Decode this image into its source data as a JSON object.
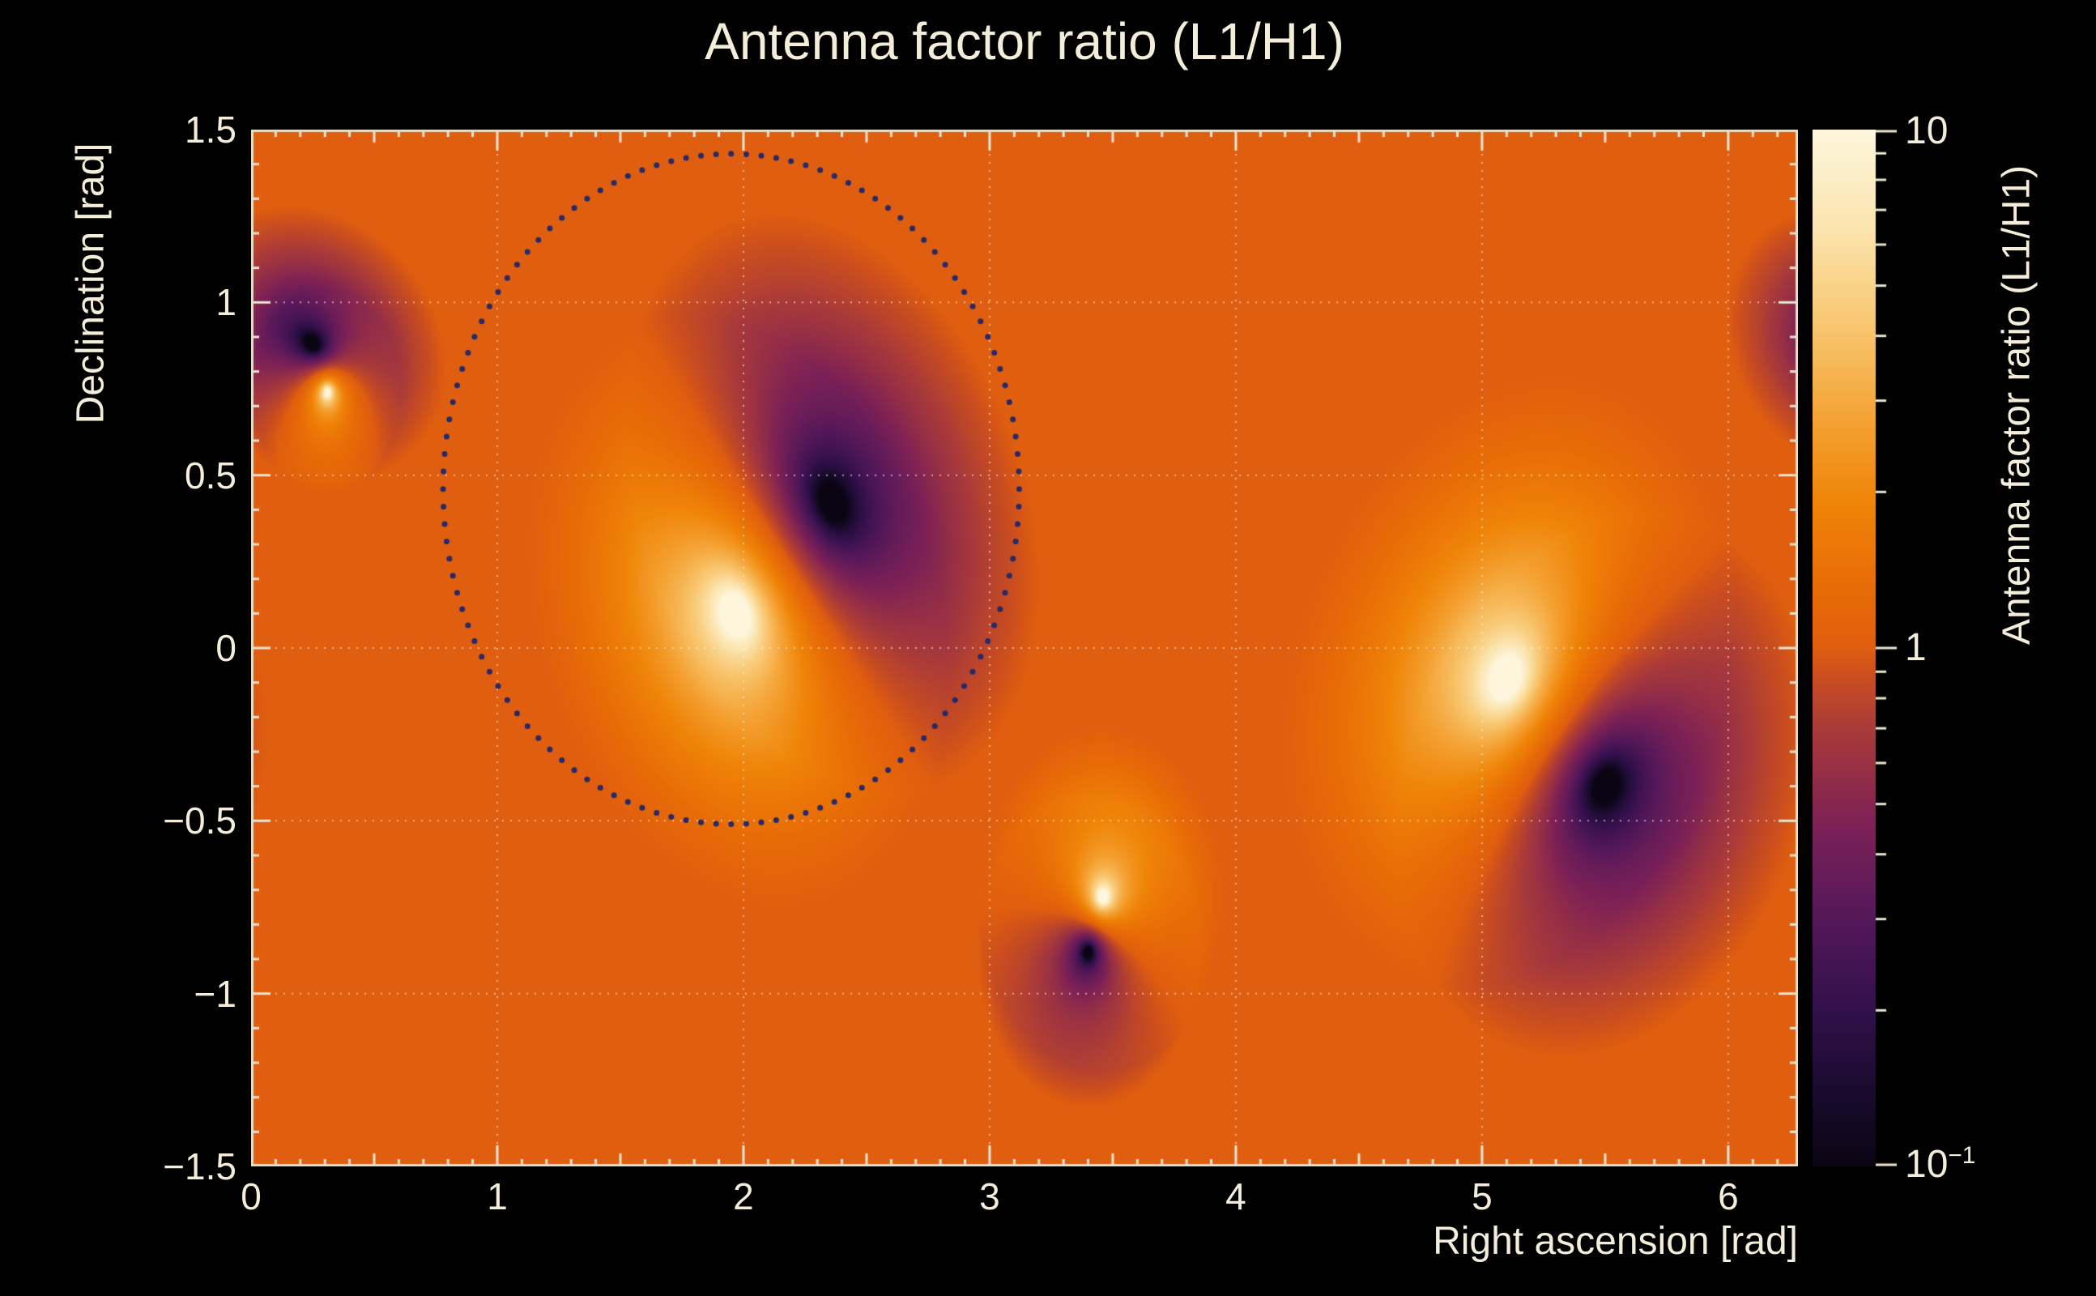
{
  "title": "Antenna factor ratio (L1/H1)",
  "axes": {
    "x_label": "Right ascension [rad]",
    "y_label": "Declination [rad]"
  },
  "colorbar": {
    "title": "Antenna factor ratio (L1/H1)",
    "scale": "log",
    "range": [
      0.1,
      10
    ],
    "ticks": [
      {
        "value": 10,
        "label": "10"
      },
      {
        "value": 1,
        "label": "1"
      },
      {
        "value": 0.1,
        "label": "10^-1"
      }
    ]
  },
  "colors": {
    "background": "#000000",
    "text": "#f3edda",
    "frame": "#e6ddc8",
    "tick": "#ece4d0",
    "grid": "rgba(250,246,235,0.6)"
  },
  "chart_data": {
    "type": "heatmap",
    "title": "Antenna factor ratio (L1/H1)",
    "xlabel": "Right ascension [rad]",
    "ylabel": "Declination [rad]",
    "xlim": [
      0,
      6.2832
    ],
    "ylim": [
      -1.5,
      1.5
    ],
    "z_scale": "log",
    "zlim": [
      0.1,
      10
    ],
    "background_value": 1.0,
    "x_ticks": [
      {
        "value": 0,
        "label": "0"
      },
      {
        "value": 1,
        "label": "1"
      },
      {
        "value": 2,
        "label": "2"
      },
      {
        "value": 3,
        "label": "3"
      },
      {
        "value": 4,
        "label": "4"
      },
      {
        "value": 5,
        "label": "5"
      },
      {
        "value": 6,
        "label": "6"
      }
    ],
    "y_ticks": [
      {
        "value": 1.5,
        "label": "1.5"
      },
      {
        "value": 1,
        "label": "1"
      },
      {
        "value": 0.5,
        "label": "0.5"
      },
      {
        "value": 0,
        "label": "0"
      },
      {
        "value": -0.5,
        "label": "−0.5"
      },
      {
        "value": -1,
        "label": "−1"
      },
      {
        "value": -1.5,
        "label": "−1.5"
      }
    ],
    "grid": {
      "x": [
        1,
        2,
        3,
        4,
        5,
        6
      ],
      "y": [
        -1,
        -0.5,
        0,
        0.5,
        1
      ]
    },
    "features": [
      {
        "kind": "null",
        "ra": 0.25,
        "dec": 0.88,
        "radius": 0.55,
        "aspect": 0.7,
        "angle_deg": 165
      },
      {
        "kind": "peak",
        "ra": 0.31,
        "dec": 0.74,
        "radius": 0.3,
        "aspect": 1.0,
        "angle_deg": 0
      },
      {
        "kind": "peak",
        "ra": 1.97,
        "dec": 0.1,
        "radius": 0.95,
        "aspect": 0.8,
        "angle_deg": 135
      },
      {
        "kind": "null",
        "ra": 2.36,
        "dec": 0.42,
        "radius": 0.95,
        "aspect": 0.75,
        "angle_deg": 135
      },
      {
        "kind": "peak",
        "ra": 3.46,
        "dec": -0.72,
        "radius": 0.5,
        "aspect": 1.0,
        "angle_deg": 0
      },
      {
        "kind": "null",
        "ra": 3.4,
        "dec": -0.88,
        "radius": 0.45,
        "aspect": 1.0,
        "angle_deg": 0
      },
      {
        "kind": "peak",
        "ra": 5.1,
        "dec": -0.09,
        "radius": 1.0,
        "aspect": 0.8,
        "angle_deg": 40
      },
      {
        "kind": "null",
        "ra": 5.5,
        "dec": -0.4,
        "radius": 0.9,
        "aspect": 0.8,
        "angle_deg": 35
      }
    ],
    "contour": {
      "style": "dotted",
      "color": "#252a6a",
      "center_ra": 1.95,
      "center_dec": 0.46,
      "radius_ra": 1.17,
      "radius_dec": 0.97,
      "n_dots": 120,
      "dot_radius_px": 3.5
    },
    "colormap": [
      [
        0.0,
        "#0b0513"
      ],
      [
        0.07,
        "#190b2d"
      ],
      [
        0.15,
        "#32104b"
      ],
      [
        0.24,
        "#551859"
      ],
      [
        0.33,
        "#7d2156"
      ],
      [
        0.42,
        "#a93a3a"
      ],
      [
        0.47,
        "#c94d20"
      ],
      [
        0.5,
        "#e05e0f"
      ],
      [
        0.56,
        "#e86c06"
      ],
      [
        0.64,
        "#ef8408"
      ],
      [
        0.72,
        "#f4a234"
      ],
      [
        0.81,
        "#f8c66f"
      ],
      [
        0.9,
        "#fbe3ab"
      ],
      [
        1.0,
        "#fdf6dd"
      ]
    ]
  }
}
